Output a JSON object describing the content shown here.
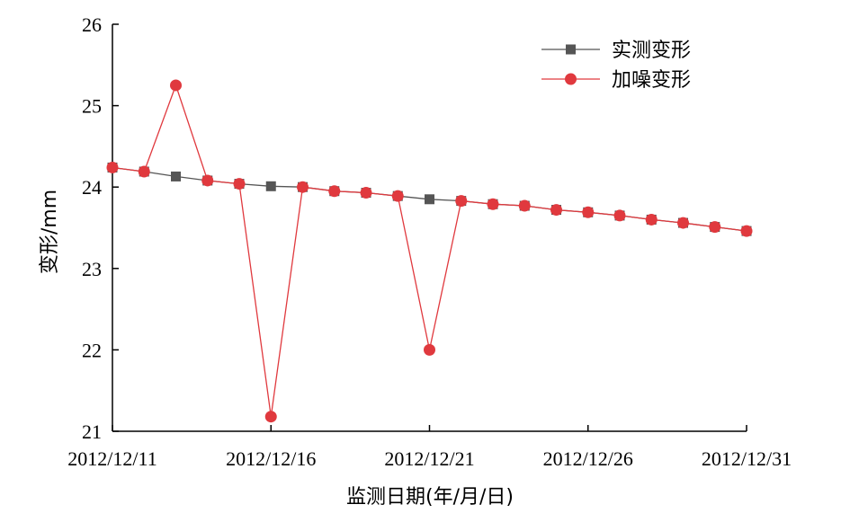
{
  "chart_data": {
    "type": "line",
    "title": "",
    "xlabel": "监测日期(年/月/日)",
    "ylabel": "变形/mm",
    "ylim": [
      21,
      26
    ],
    "yticks": [
      21,
      22,
      23,
      24,
      25,
      26
    ],
    "xlim": [
      "2012/12/11",
      "2012/12/31"
    ],
    "xticks": [
      "2012/12/11",
      "2012/12/16",
      "2012/12/21",
      "2012/12/26",
      "2012/12/31"
    ],
    "grid": false,
    "legend_position": "top-right",
    "series": [
      {
        "name": "实测变形",
        "marker": "square",
        "color": "#555555",
        "x": [
          "2012/12/11",
          "2012/12/12",
          "2012/12/13",
          "2012/12/14",
          "2012/12/15",
          "2012/12/16",
          "2012/12/17",
          "2012/12/18",
          "2012/12/19",
          "2012/12/20",
          "2012/12/21",
          "2012/12/22",
          "2012/12/23",
          "2012/12/24",
          "2012/12/25",
          "2012/12/26",
          "2012/12/27",
          "2012/12/28",
          "2012/12/29",
          "2012/12/30",
          "2012/12/31"
        ],
        "values": [
          24.24,
          24.19,
          24.13,
          24.08,
          24.04,
          24.01,
          24.0,
          23.95,
          23.93,
          23.89,
          23.85,
          23.83,
          23.79,
          23.77,
          23.72,
          23.69,
          23.65,
          23.6,
          23.56,
          23.51,
          23.46
        ]
      },
      {
        "name": "加噪变形",
        "marker": "circle",
        "color": "#e0393e",
        "x": [
          "2012/12/11",
          "2012/12/12",
          "2012/12/13",
          "2012/12/14",
          "2012/12/15",
          "2012/12/16",
          "2012/12/17",
          "2012/12/18",
          "2012/12/19",
          "2012/12/20",
          "2012/12/21",
          "2012/12/22",
          "2012/12/23",
          "2012/12/24",
          "2012/12/25",
          "2012/12/26",
          "2012/12/27",
          "2012/12/28",
          "2012/12/29",
          "2012/12/30",
          "2012/12/31"
        ],
        "values": [
          24.24,
          24.19,
          25.25,
          24.08,
          24.04,
          21.18,
          24.0,
          23.95,
          23.93,
          23.89,
          22.0,
          23.83,
          23.79,
          23.77,
          23.72,
          23.69,
          23.65,
          23.6,
          23.56,
          23.51,
          23.46
        ]
      }
    ]
  }
}
